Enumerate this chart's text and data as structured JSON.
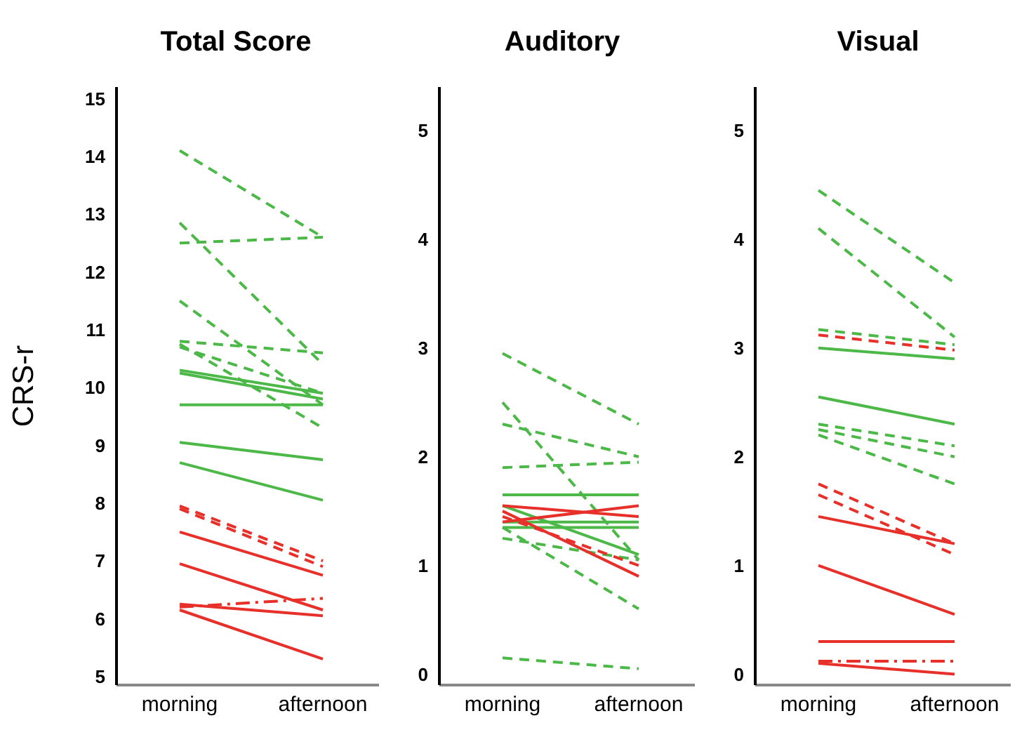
{
  "chart_data": [
    {
      "type": "line",
      "title": "Total Score",
      "ylabel": "CRS-r",
      "categories": [
        "morning",
        "afternoon"
      ],
      "ylim": [
        4.85,
        15.2
      ],
      "yticks": [
        5,
        6,
        7,
        8,
        9,
        10,
        11,
        12,
        13,
        14,
        15
      ],
      "marker": "none",
      "series": [
        {
          "color": "#4cb848",
          "line_style": "dashed",
          "values": [
            14.1,
            12.6
          ]
        },
        {
          "color": "#4cb848",
          "line_style": "dashed",
          "values": [
            12.85,
            10.4
          ]
        },
        {
          "color": "#4cb848",
          "line_style": "dashed",
          "values": [
            12.5,
            12.6
          ]
        },
        {
          "color": "#4cb848",
          "line_style": "dashed",
          "values": [
            11.5,
            9.7
          ]
        },
        {
          "color": "#4cb848",
          "line_style": "dashed",
          "values": [
            10.8,
            10.6
          ]
        },
        {
          "color": "#4cb848",
          "line_style": "dashed",
          "values": [
            10.75,
            9.3
          ]
        },
        {
          "color": "#4cb848",
          "line_style": "dashed",
          "values": [
            10.7,
            9.9
          ]
        },
        {
          "color": "#4cb848",
          "line_style": "solid",
          "values": [
            10.3,
            9.9
          ]
        },
        {
          "color": "#4cb848",
          "line_style": "solid",
          "values": [
            10.25,
            9.8
          ]
        },
        {
          "color": "#4cb848",
          "line_style": "solid",
          "values": [
            9.7,
            9.7
          ]
        },
        {
          "color": "#4cb848",
          "line_style": "solid",
          "values": [
            9.05,
            8.75
          ]
        },
        {
          "color": "#4cb848",
          "line_style": "solid",
          "values": [
            8.7,
            8.05
          ]
        },
        {
          "color": "#e8302a",
          "line_style": "dashed",
          "values": [
            7.95,
            7.0
          ]
        },
        {
          "color": "#e8302a",
          "line_style": "dashed",
          "values": [
            7.9,
            6.9
          ]
        },
        {
          "color": "#e8302a",
          "line_style": "solid",
          "values": [
            7.5,
            6.75
          ]
        },
        {
          "color": "#e8302a",
          "line_style": "solid",
          "values": [
            6.95,
            6.15
          ]
        },
        {
          "color": "#e8302a",
          "line_style": "solid",
          "values": [
            6.25,
            6.05
          ]
        },
        {
          "color": "#e8302a",
          "line_style": "dashdot",
          "values": [
            6.2,
            6.35
          ]
        },
        {
          "color": "#e8302a",
          "line_style": "solid",
          "values": [
            6.15,
            5.3
          ]
        }
      ]
    },
    {
      "type": "line",
      "title": "Auditory",
      "categories": [
        "morning",
        "afternoon"
      ],
      "ylim": [
        -0.1,
        5.4
      ],
      "yticks": [
        0,
        1,
        2,
        3,
        4,
        5
      ],
      "marker": "none",
      "series": [
        {
          "color": "#4cb848",
          "line_style": "dashed",
          "values": [
            2.95,
            2.3
          ]
        },
        {
          "color": "#4cb848",
          "line_style": "dashed",
          "values": [
            2.5,
            1.05
          ]
        },
        {
          "color": "#4cb848",
          "line_style": "dashed",
          "values": [
            2.3,
            2.0
          ]
        },
        {
          "color": "#4cb848",
          "line_style": "dashed",
          "values": [
            1.9,
            1.95
          ]
        },
        {
          "color": "#4cb848",
          "line_style": "dashed",
          "values": [
            1.25,
            1.05
          ]
        },
        {
          "color": "#4cb848",
          "line_style": "dashed",
          "values": [
            1.35,
            0.6
          ]
        },
        {
          "color": "#4cb848",
          "line_style": "dashed",
          "values": [
            0.15,
            0.05
          ]
        },
        {
          "color": "#4cb848",
          "line_style": "solid",
          "values": [
            1.65,
            1.65
          ]
        },
        {
          "color": "#4cb848",
          "line_style": "solid",
          "values": [
            1.55,
            1.1
          ]
        },
        {
          "color": "#4cb848",
          "line_style": "solid",
          "values": [
            1.4,
            1.4
          ]
        },
        {
          "color": "#4cb848",
          "line_style": "solid",
          "values": [
            1.35,
            1.35
          ]
        },
        {
          "color": "#e8302a",
          "line_style": "solid",
          "values": [
            1.55,
            1.45
          ]
        },
        {
          "color": "#e8302a",
          "line_style": "solid",
          "values": [
            1.4,
            1.55
          ]
        },
        {
          "color": "#e8302a",
          "line_style": "solid",
          "values": [
            1.5,
            0.9
          ]
        },
        {
          "color": "#e8302a",
          "line_style": "dashed",
          "values": [
            1.45,
            1.0
          ]
        }
      ]
    },
    {
      "type": "line",
      "title": "Visual",
      "categories": [
        "morning",
        "afternoon"
      ],
      "ylim": [
        -0.1,
        5.4
      ],
      "yticks": [
        0,
        1,
        2,
        3,
        4,
        5
      ],
      "marker": "none",
      "series": [
        {
          "color": "#4cb848",
          "line_style": "dashed",
          "values": [
            4.45,
            3.6
          ]
        },
        {
          "color": "#4cb848",
          "line_style": "dashed",
          "values": [
            4.1,
            3.1
          ]
        },
        {
          "color": "#4cb848",
          "line_style": "dashed",
          "values": [
            3.17,
            3.03
          ]
        },
        {
          "color": "#e8302a",
          "line_style": "dashed",
          "values": [
            3.12,
            2.98
          ]
        },
        {
          "color": "#4cb848",
          "line_style": "solid",
          "values": [
            3.0,
            2.9
          ]
        },
        {
          "color": "#4cb848",
          "line_style": "solid",
          "values": [
            2.55,
            2.3
          ]
        },
        {
          "color": "#4cb848",
          "line_style": "dashed",
          "values": [
            2.3,
            2.1
          ]
        },
        {
          "color": "#4cb848",
          "line_style": "dashed",
          "values": [
            2.25,
            2.0
          ]
        },
        {
          "color": "#4cb848",
          "line_style": "dashed",
          "values": [
            2.2,
            1.75
          ]
        },
        {
          "color": "#e8302a",
          "line_style": "dashed",
          "values": [
            1.75,
            1.2
          ]
        },
        {
          "color": "#e8302a",
          "line_style": "dashed",
          "values": [
            1.65,
            1.1
          ]
        },
        {
          "color": "#e8302a",
          "line_style": "solid",
          "values": [
            1.45,
            1.2
          ]
        },
        {
          "color": "#e8302a",
          "line_style": "solid",
          "values": [
            1.0,
            0.55
          ]
        },
        {
          "color": "#e8302a",
          "line_style": "solid",
          "values": [
            0.3,
            0.3
          ]
        },
        {
          "color": "#e8302a",
          "line_style": "dashdot",
          "values": [
            0.12,
            0.12
          ]
        },
        {
          "color": "#e8302a",
          "line_style": "solid",
          "values": [
            0.1,
            0.0
          ]
        }
      ]
    }
  ]
}
